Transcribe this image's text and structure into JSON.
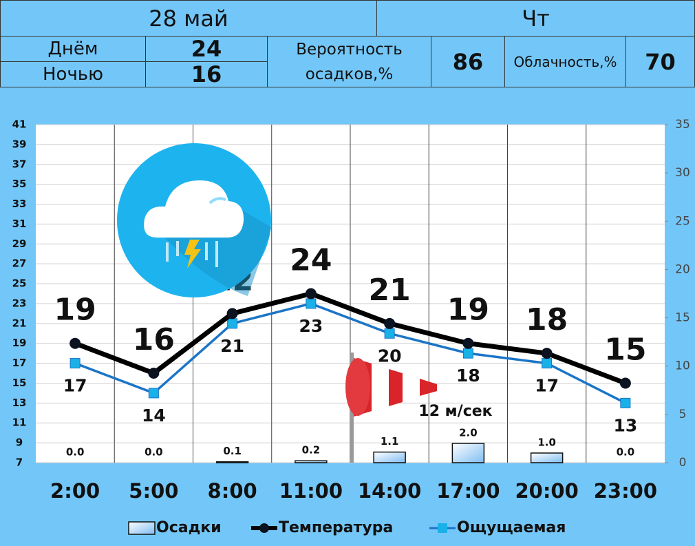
{
  "header": {
    "date": "28 май",
    "weekday": "Чт",
    "day_label": "Днём",
    "day_temp": 24,
    "night_label": "Ночью",
    "night_temp": 16,
    "precip_prob_label": "Вероятность осадков,%",
    "precip_prob": 86,
    "cloud_label": "Облачность,%",
    "cloud": 70
  },
  "chart_data": {
    "type": "combo",
    "categories": [
      "2:00",
      "5:00",
      "8:00",
      "11:00",
      "14:00",
      "17:00",
      "20:00",
      "23:00"
    ],
    "series": [
      {
        "name": "Осадки",
        "type": "bar",
        "axis": "y2",
        "color": "#a9d6f8",
        "values": [
          0,
          0,
          0.1,
          0.2,
          1.1,
          2,
          1,
          0
        ],
        "value_labels": [
          "0.0",
          "0.0",
          "0.1",
          "0.2",
          "1.1",
          "2.0",
          "1.0",
          "0.0"
        ]
      },
      {
        "name": "Температура",
        "type": "line",
        "color": "#000000",
        "values": [
          19,
          16,
          22,
          24,
          21,
          19,
          18,
          15
        ]
      },
      {
        "name": "Ощущаемая",
        "type": "line",
        "color": "#1a75c7",
        "marker_color": "#1ab0e8",
        "values": [
          17,
          14,
          21,
          23,
          20,
          18,
          17,
          13
        ]
      }
    ],
    "ylim": [
      7,
      41
    ],
    "yticks": [
      7,
      9,
      11,
      13,
      15,
      17,
      19,
      21,
      23,
      25,
      27,
      29,
      31,
      33,
      35,
      37,
      39,
      41
    ],
    "y2lim": [
      0,
      35
    ],
    "y2ticks": [
      0,
      5,
      10,
      15,
      20,
      25,
      30,
      35
    ],
    "annotation": "12 м/сек",
    "grid": true
  }
}
